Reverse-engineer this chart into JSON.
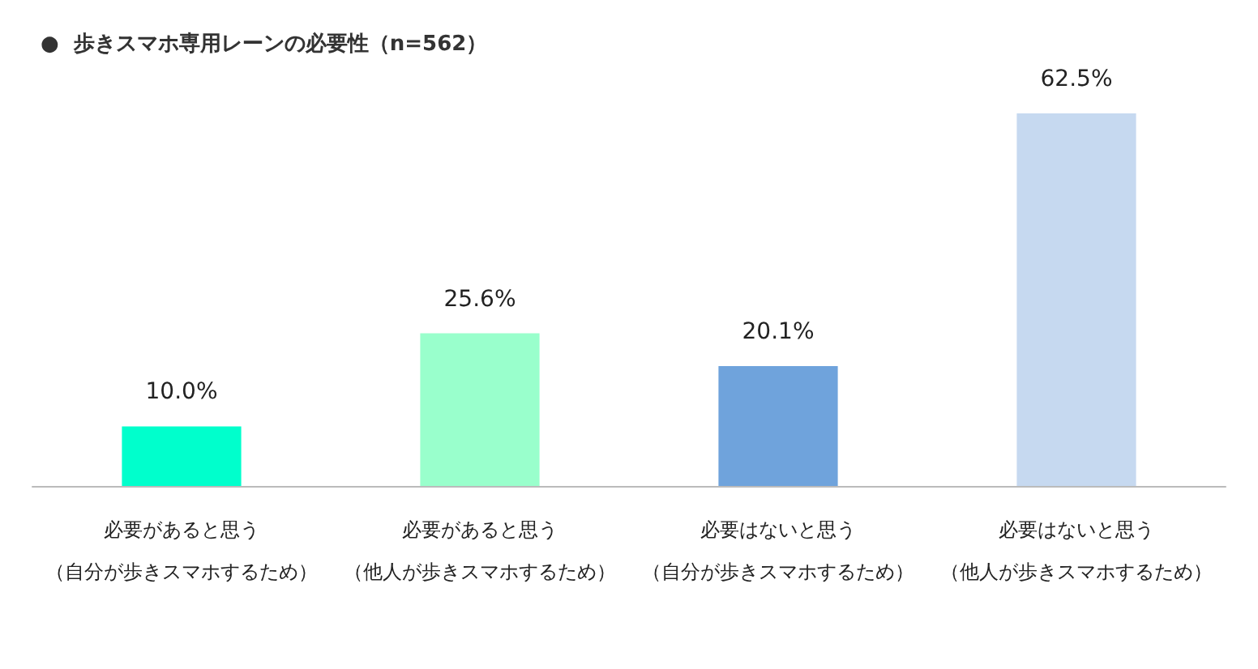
{
  "chart_data": {
    "type": "bar",
    "title": "●  歩きスマホ専用レーンの必要性（n=562）",
    "categories": [
      "必要があると思う（自分が歩きスマホするため）",
      "必要があると思う（他人が歩きスマホするため）",
      "必要はないと思う（自分が歩きスマホするため）",
      "必要はないと思う（他人が歩きスマホするため）"
    ],
    "values": [
      10.0,
      25.6,
      20.1,
      62.5
    ],
    "value_labels": [
      "10.0%",
      "25.6%",
      "20.1%",
      "62.5%"
    ],
    "colors": [
      "#00ffcc",
      "#99ffcc",
      "#6fa3dc",
      "#c6d9f0"
    ],
    "grid": false
  }
}
